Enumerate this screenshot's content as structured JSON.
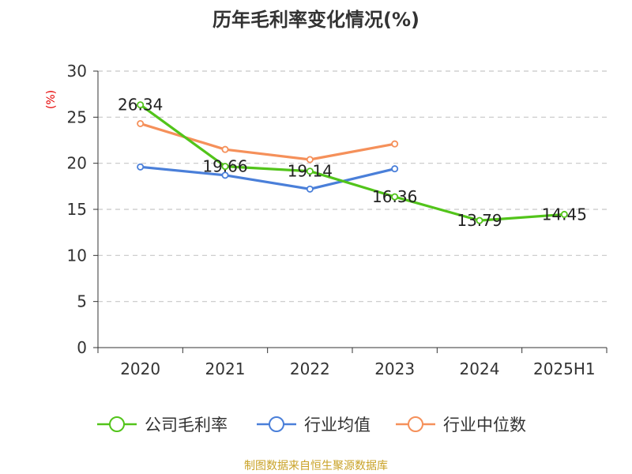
{
  "chart_data": {
    "type": "line",
    "title": "历年毛利率变化情况(%)",
    "ylabel": "(%)",
    "xlabel": "",
    "categories": [
      "2020",
      "2021",
      "2022",
      "2023",
      "2024",
      "2025H1"
    ],
    "ylim": [
      0,
      30
    ],
    "yticks": [
      0,
      5,
      10,
      15,
      20,
      25,
      30
    ],
    "grid": true,
    "legend_position": "bottom",
    "series": [
      {
        "name": "公司毛利率",
        "color": "#52c41a",
        "values": [
          26.34,
          19.66,
          19.14,
          16.36,
          13.79,
          14.45
        ],
        "labels": [
          "26.34",
          "19.66",
          "19.14",
          "16.36",
          "13.79",
          "14.45"
        ]
      },
      {
        "name": "行业均值",
        "color": "#4a7fd9",
        "values": [
          19.6,
          18.7,
          17.2,
          19.4,
          null,
          null
        ]
      },
      {
        "name": "行业中位数",
        "color": "#f5905a",
        "values": [
          24.3,
          21.5,
          20.4,
          22.1,
          null,
          null
        ]
      }
    ]
  },
  "footer": {
    "source": "制图数据来自恒生聚源数据库"
  }
}
